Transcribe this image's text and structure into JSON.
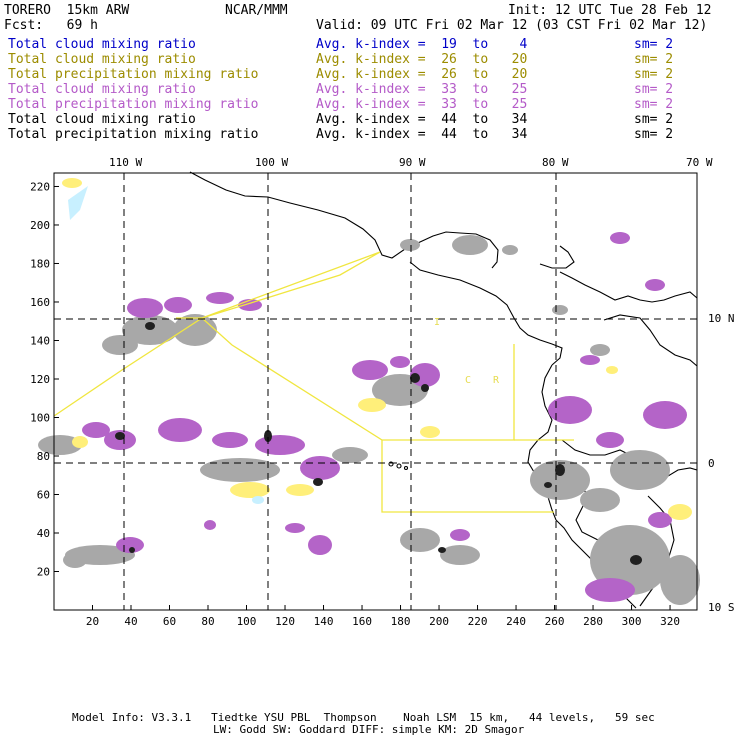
{
  "header": {
    "model": "TORERO  15km ARW",
    "org": "NCAR/MMM",
    "init": "Init: 12 UTC Tue 28 Feb 12",
    "fcst": "Fcst:   69 h",
    "valid": "Valid: 09 UTC Fri 02 Mar 12 (03 CST Fri 02 Mar 12)"
  },
  "legend": [
    {
      "field": "Total cloud mixing ratio",
      "kindex": "Avg. k-index =  19  to    4",
      "sm": "sm= 2",
      "color": "#0000c8"
    },
    {
      "field": "Total cloud mixing ratio",
      "kindex": "Avg. k-index =  26  to   20",
      "sm": "sm= 2",
      "color": "#9c8c00"
    },
    {
      "field": "Total precipitation mixing ratio",
      "kindex": "Avg. k-index =  26  to   20",
      "sm": "sm= 2",
      "color": "#9c8c00"
    },
    {
      "field": "Total cloud mixing ratio",
      "kindex": "Avg. k-index =  33  to   25",
      "sm": "sm= 2",
      "color": "#b45ac8"
    },
    {
      "field": "Total precipitation mixing ratio",
      "kindex": "Avg. k-index =  33  to   25",
      "sm": "sm= 2",
      "color": "#b45ac8"
    },
    {
      "field": "Total cloud mixing ratio",
      "kindex": "Avg. k-index =  44  to   34",
      "sm": "sm= 2",
      "color": "#000000"
    },
    {
      "field": "Total precipitation mixing ratio",
      "kindex": "Avg. k-index =  44  to   34",
      "sm": "sm= 2",
      "color": "#000000"
    }
  ],
  "map": {
    "lon_labels": [
      "110 W",
      "100 W",
      "90 W",
      "80 W",
      "70 W"
    ],
    "lat_labels": [
      "10 N",
      "0",
      "10 S"
    ],
    "x_ticks": [
      "20",
      "40",
      "60",
      "80",
      "100",
      "120",
      "140",
      "160",
      "180",
      "200",
      "220",
      "240",
      "260",
      "280",
      "300",
      "320"
    ],
    "y_ticks": [
      "220",
      "200",
      "180",
      "160",
      "140",
      "120",
      "100",
      "80",
      "60",
      "40",
      "20"
    ],
    "region_labels": [
      "I",
      "C",
      "R"
    ]
  },
  "footer": {
    "line1": "Model Info: V3.3.1   Tiedtke YSU PBL  Thompson    Noah LSM  15 km,   44 levels,   59 sec",
    "line2": "LW: Godd SW: Goddard DIFF: simple KM: 2D Smagor"
  }
}
